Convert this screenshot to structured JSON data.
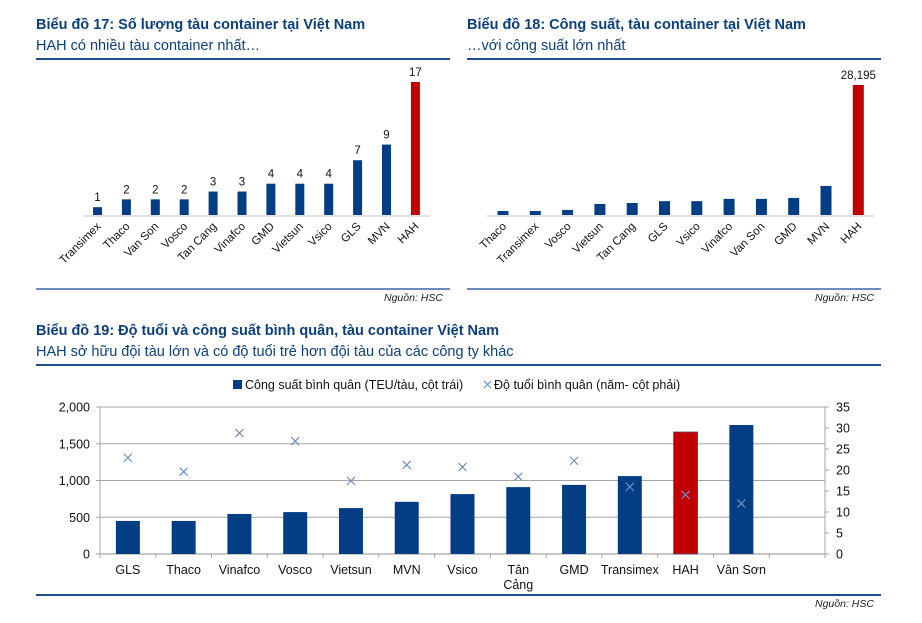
{
  "colors": {
    "title": "#0b3f7e",
    "bar": "#033e84",
    "highlight": "#c00000",
    "cross": "#6f8ec4",
    "grid": "#a6a6a6"
  },
  "source_label": "Nguồn: HSC",
  "chart_data": [
    {
      "id": "chart17",
      "type": "bar",
      "title": "Biểu đồ 17: Số lượng tàu container tại Việt Nam",
      "subtitle": "HAH có nhiều tàu container nhất…",
      "categories": [
        "Transimex",
        "Thaco",
        "Van Son",
        "Vosco",
        "Tan Cang",
        "Vinafco",
        "GMD",
        "Vietsun",
        "Vsico",
        "GLS",
        "MVN",
        "HAH"
      ],
      "values": [
        1,
        2,
        2,
        2,
        3,
        3,
        4,
        4,
        4,
        7,
        9,
        17
      ],
      "data_labels": [
        "1",
        "2",
        "2",
        "2",
        "3",
        "3",
        "4",
        "4",
        "4",
        "7",
        "9",
        "17"
      ],
      "highlight": "HAH",
      "ylim": [
        0,
        17
      ],
      "xlabel": "",
      "ylabel": "",
      "grid": false
    },
    {
      "id": "chart18",
      "type": "bar",
      "title": "Biểu đồ 18: Công suất, tàu container tại Việt Nam",
      "subtitle": "…với công suất lớn nhất",
      "categories": [
        "Thaco",
        "Transimex",
        "Vosco",
        "Vietsun",
        "Tan Cang",
        "GLS",
        "Vsico",
        "Vinafco",
        "Van Son",
        "GMD",
        "MVN",
        "HAH"
      ],
      "values": [
        870,
        870,
        1100,
        2400,
        2600,
        3000,
        3000,
        3500,
        3500,
        3700,
        6300,
        28195
      ],
      "data_labels": [
        "",
        "",
        "",
        "",
        "",
        "",
        "",
        "",
        "",
        "",
        "",
        "28,195"
      ],
      "highlight": "HAH",
      "ylim": [
        0,
        28195
      ],
      "xlabel": "",
      "ylabel": "",
      "grid": false
    },
    {
      "id": "chart19",
      "type": "bar",
      "title": "Biểu đồ 19: Độ tuổi và công suất bình quân, tàu container Việt Nam",
      "subtitle": "HAH sở hữu đội tàu lớn và có độ tuổi trẻ hơn đội tàu của các công ty khác",
      "legend": [
        "Công suất bình quân (TEU/tàu, cột trái)",
        "Độ tuổi bình quân (năm- cột phải)"
      ],
      "legend_position": "top",
      "categories": [
        "GLS",
        "Thaco",
        "Vinafco",
        "Vosco",
        "Vietsun",
        "MVN",
        "Vsico",
        "Tân Cảng",
        "GMD",
        "Transimex",
        "HAH",
        "Vân Sơn",
        ""
      ],
      "series": [
        {
          "name": "Công suất bình quân (TEU/tàu, cột trái)",
          "type": "bar",
          "axis": "left",
          "values": [
            450,
            450,
            545,
            570,
            625,
            710,
            815,
            910,
            940,
            1060,
            1660,
            1755,
            null
          ]
        },
        {
          "name": "Độ tuổi bình quân (năm- cột phải)",
          "type": "scatter",
          "axis": "right",
          "values": [
            22.9,
            19.6,
            28.8,
            26.9,
            17.4,
            21.2,
            20.7,
            18.4,
            22.2,
            16.0,
            14.1,
            12.0,
            null
          ]
        }
      ],
      "highlight": "HAH",
      "ylim_left": [
        0,
        2000
      ],
      "yticks_left": [
        "0",
        "500",
        "1,000",
        "1,500",
        "2,000"
      ],
      "ylim_right": [
        0,
        35
      ],
      "yticks_right": [
        "0",
        "5",
        "10",
        "15",
        "20",
        "25",
        "30",
        "35"
      ],
      "grid": true
    }
  ]
}
